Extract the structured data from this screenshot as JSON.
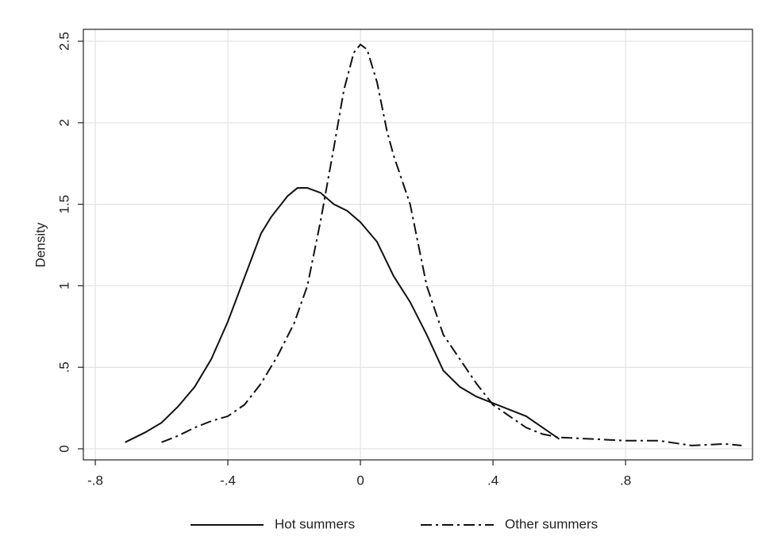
{
  "chart_data": {
    "type": "line",
    "y_label": "Density",
    "xlim": [
      -0.836,
      1.183
    ],
    "ylim": [
      -0.068,
      2.573
    ],
    "xticks": [
      {
        "value": -0.8,
        "label": "-.8"
      },
      {
        "value": -0.4,
        "label": "-.4"
      },
      0,
      {
        "value": 0.4,
        "label": ".4"
      },
      {
        "value": 0.8,
        "label": ".8"
      }
    ],
    "yticks": [
      0,
      {
        "value": 0.5,
        "label": ".5"
      },
      1,
      1.5,
      2,
      2.5
    ],
    "grid": true,
    "legend": "bottom",
    "series": [
      {
        "name": "Hot summers",
        "color": "#111111",
        "style": "solid",
        "x": [
          -0.71,
          -0.65,
          -0.6,
          -0.55,
          -0.5,
          -0.45,
          -0.4,
          -0.35,
          -0.3,
          -0.27,
          -0.22,
          -0.19,
          -0.16,
          -0.12,
          -0.08,
          -0.04,
          0,
          0.05,
          0.1,
          0.15,
          0.2,
          0.25,
          0.3,
          0.35,
          0.4,
          0.45,
          0.5,
          0.55,
          0.6
        ],
        "values": [
          0.04,
          0.1,
          0.16,
          0.26,
          0.38,
          0.55,
          0.78,
          1.05,
          1.32,
          1.42,
          1.55,
          1.6,
          1.6,
          1.57,
          1.5,
          1.46,
          1.39,
          1.27,
          1.06,
          0.9,
          0.7,
          0.48,
          0.38,
          0.32,
          0.28,
          0.24,
          0.2,
          0.13,
          0.06
        ]
      },
      {
        "name": "Other summers",
        "color": "#111111",
        "style": "dashdot",
        "x": [
          -0.6,
          -0.55,
          -0.5,
          -0.45,
          -0.4,
          -0.35,
          -0.3,
          -0.25,
          -0.2,
          -0.16,
          -0.12,
          -0.08,
          -0.05,
          -0.02,
          0,
          0.02,
          0.05,
          0.08,
          0.1,
          0.15,
          0.2,
          0.25,
          0.3,
          0.35,
          0.4,
          0.45,
          0.5,
          0.55,
          0.6,
          0.7,
          0.8,
          0.9,
          1.0,
          1.1,
          1.15
        ],
        "values": [
          0.04,
          0.08,
          0.13,
          0.17,
          0.2,
          0.27,
          0.4,
          0.57,
          0.77,
          1.0,
          1.4,
          1.85,
          2.2,
          2.43,
          2.48,
          2.45,
          2.25,
          1.95,
          1.8,
          1.5,
          1.0,
          0.7,
          0.55,
          0.4,
          0.27,
          0.2,
          0.13,
          0.09,
          0.07,
          0.06,
          0.05,
          0.05,
          0.02,
          0.03,
          0.02
        ]
      }
    ]
  }
}
